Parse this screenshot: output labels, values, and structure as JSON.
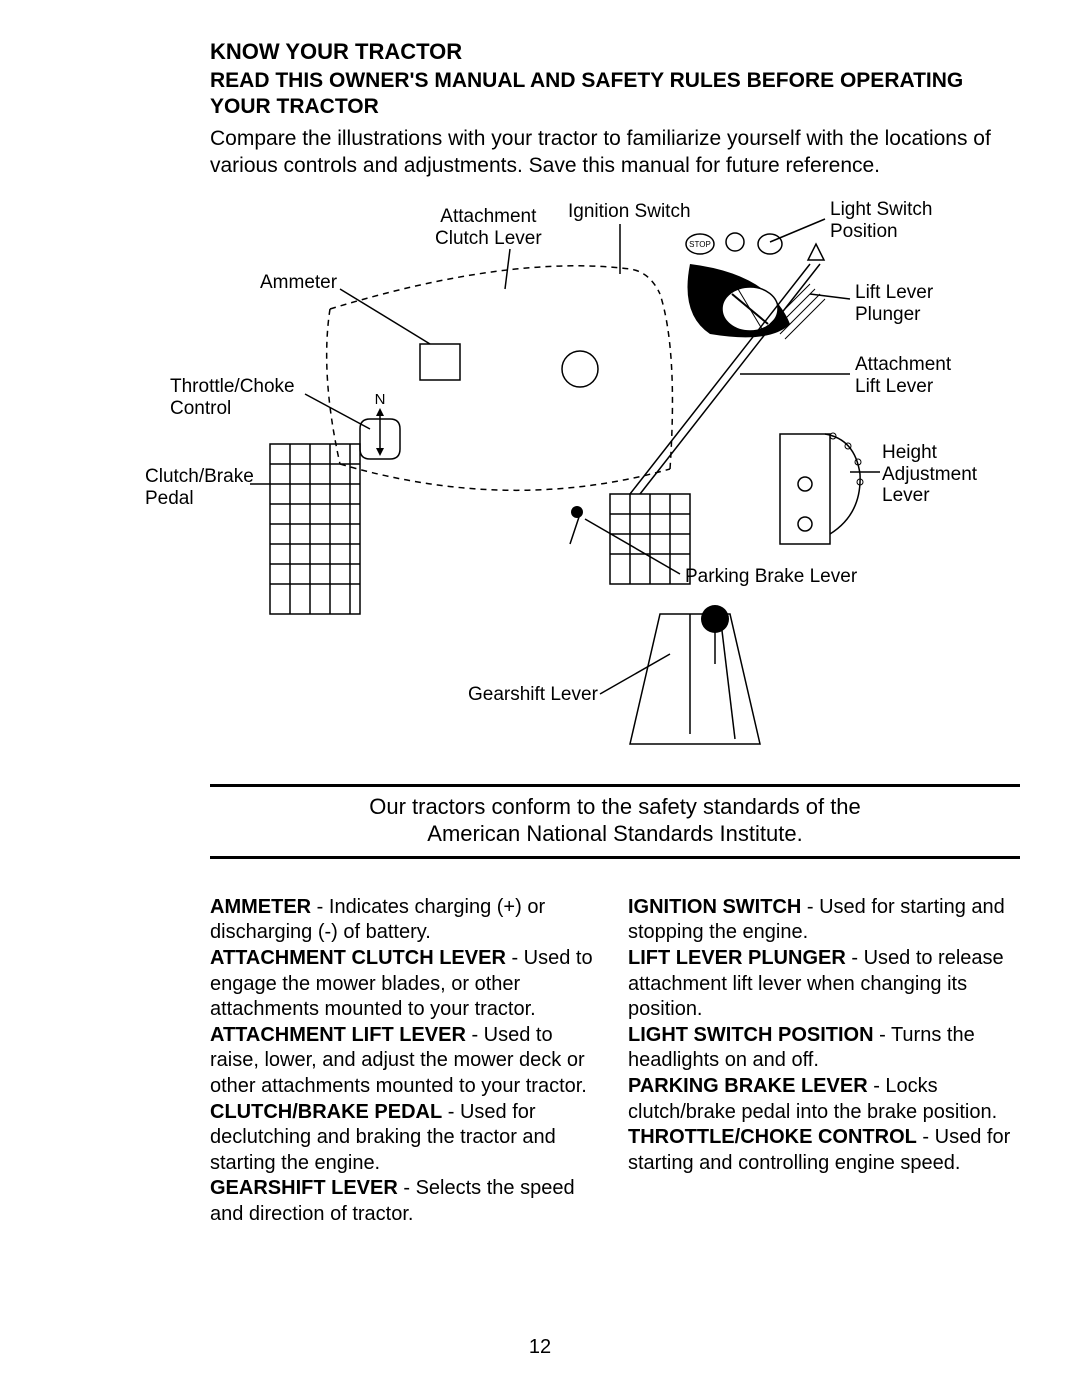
{
  "heading": "KNOW YOUR TRACTOR",
  "subheading": "READ THIS OWNER'S MANUAL AND SAFETY RULES BEFORE OPERATING YOUR TRACTOR",
  "intro": "Compare the illustrations with your tractor to familiarize yourself with the locations of various controls and adjustments. Save this manual for future reference.",
  "diagram_labels": {
    "attachment_clutch_lever": "Attachment\nClutch Lever",
    "ignition_switch": "Ignition Switch",
    "light_switch_position": "Light Switch\nPosition",
    "ammeter": "Ammeter",
    "lift_lever_plunger": "Lift Lever\nPlunger",
    "throttle_choke_control": "Throttle/Choke\nControl",
    "attachment_lift_lever": "Attachment\nLift Lever",
    "clutch_brake_pedal": "Clutch/Brake\nPedal",
    "height_adjustment_lever": "Height\nAdjustment\nLever",
    "parking_brake_lever": "Parking Brake Lever",
    "gearshift_lever": "Gearshift Lever"
  },
  "safety_line1": "Our tractors conform to the safety standards of the",
  "safety_line2": "American National Standards Institute.",
  "definitions_left": [
    {
      "term": "AMMETER",
      "desc": " - Indicates charging (+) or discharging (-) of battery."
    },
    {
      "term": "ATTACHMENT CLUTCH LEVER",
      "desc": " - Used to engage the mower blades, or other attachments mounted to your tractor."
    },
    {
      "term": "ATTACHMENT LIFT LEVER",
      "desc": " - Used to raise, lower, and adjust the mower deck or other attachments mounted to your tractor."
    },
    {
      "term": "CLUTCH/BRAKE PEDAL",
      "desc": " - Used for declutching and braking the tractor and starting the engine."
    },
    {
      "term": "GEARSHIFT LEVER",
      "desc": " - Selects the speed and direction of tractor."
    }
  ],
  "definitions_right": [
    {
      "term": "IGNITION SWITCH",
      "desc": " - Used for starting and stopping the engine."
    },
    {
      "term": "LIFT LEVER PLUNGER",
      "desc": " - Used to release attachment lift lever when changing its position."
    },
    {
      "term": "LIGHT SWITCH POSITION",
      "desc": " - Turns the headlights on and off."
    },
    {
      "term": "PARKING BRAKE LEVER",
      "desc": " - Locks clutch/brake pedal into the brake position."
    },
    {
      "term": "THROTTLE/CHOKE CONTROL",
      "desc": " - Used for starting and controlling engine speed."
    }
  ],
  "page_number": "12"
}
